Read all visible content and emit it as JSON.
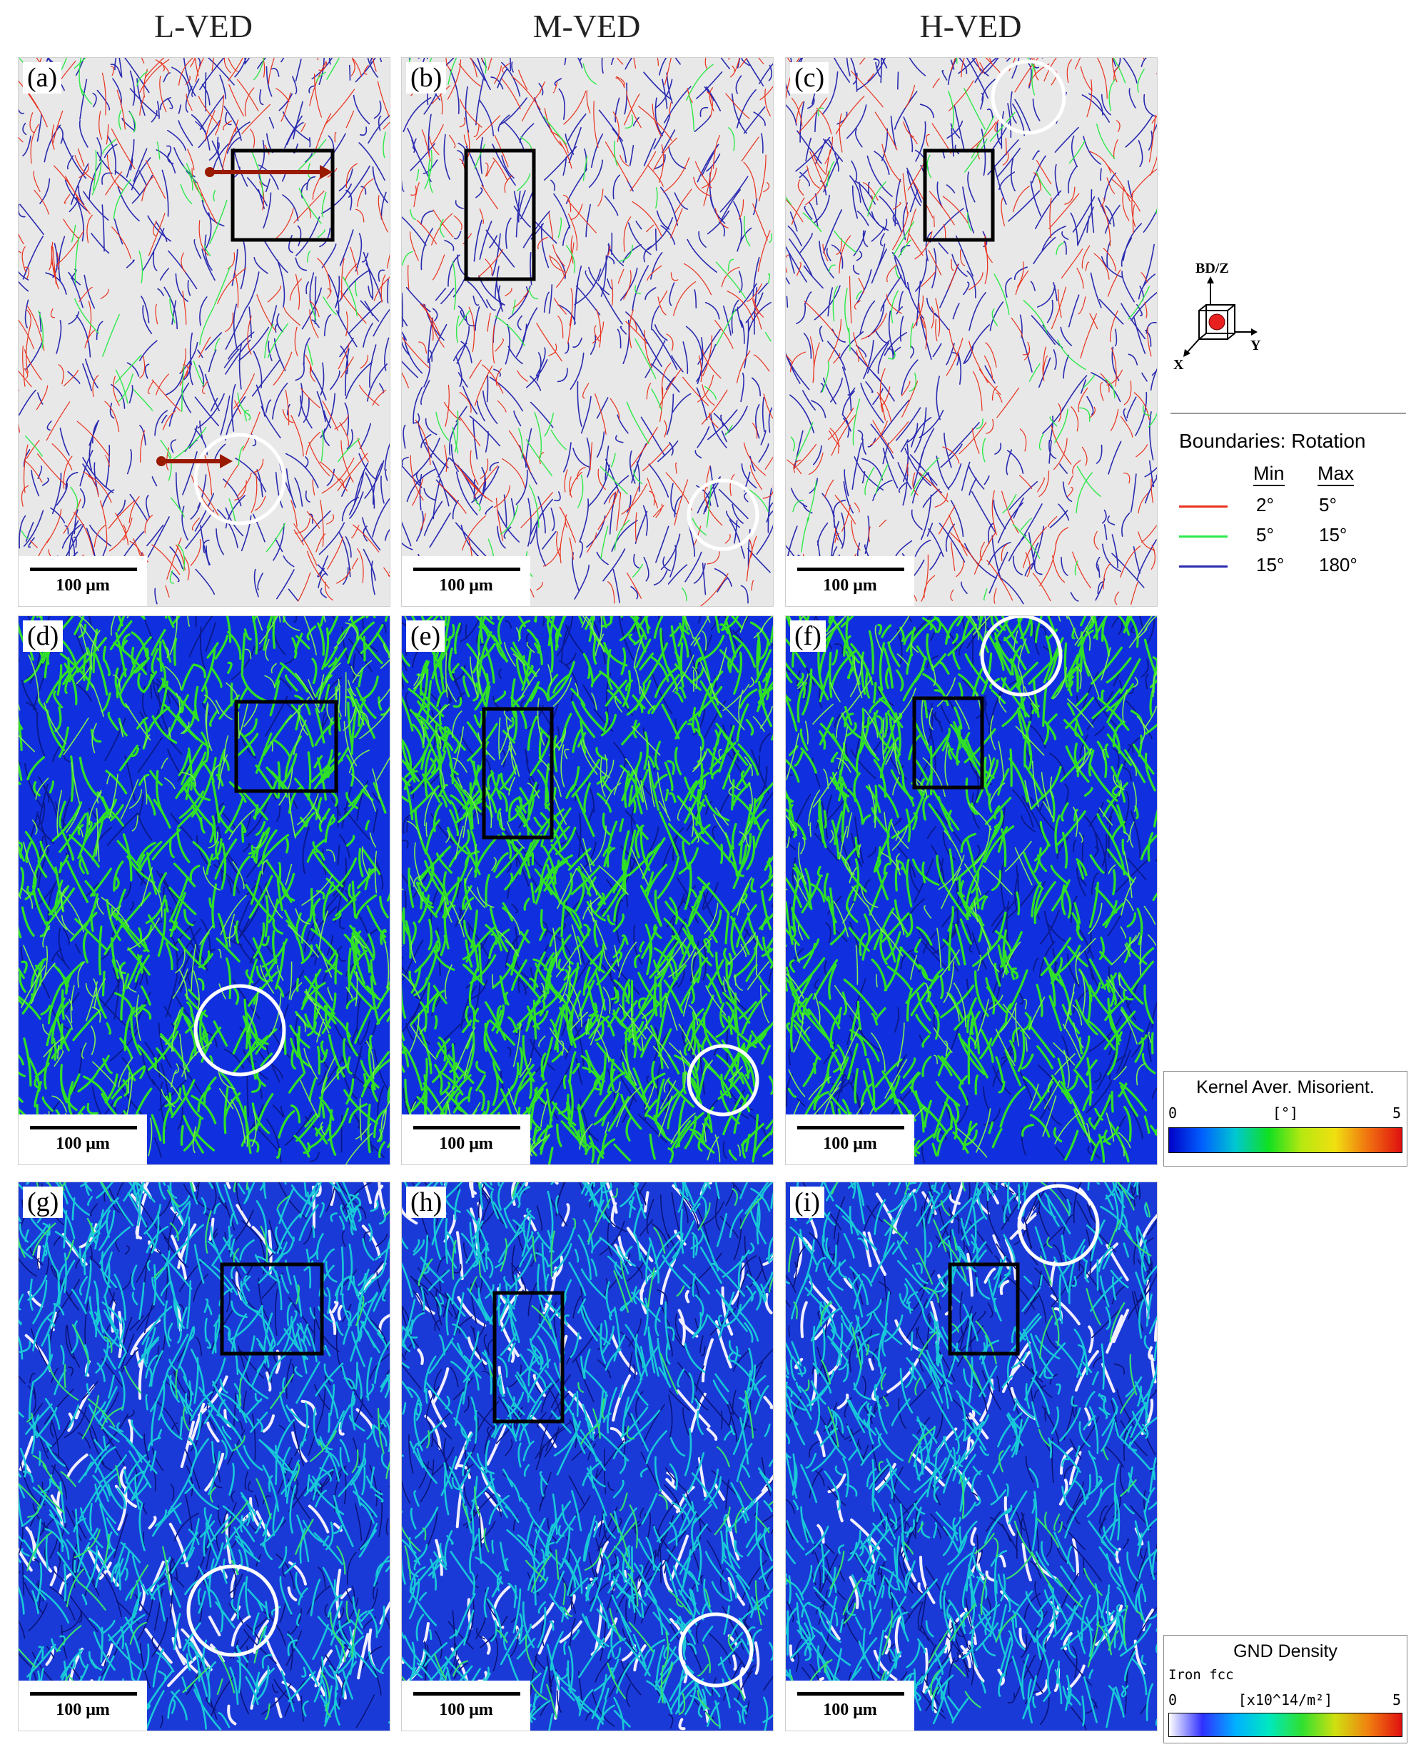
{
  "columns": [
    "L-VED",
    "M-VED",
    "H-VED"
  ],
  "panels": [
    {
      "label": "(a)",
      "type": "boundary",
      "scale_text": "100 μm"
    },
    {
      "label": "(b)",
      "type": "boundary",
      "scale_text": "100 μm"
    },
    {
      "label": "(c)",
      "type": "boundary",
      "scale_text": "100 μm"
    },
    {
      "label": "(d)",
      "type": "kam",
      "scale_text": "100 μm"
    },
    {
      "label": "(e)",
      "type": "kam",
      "scale_text": "100 μm"
    },
    {
      "label": "(f)",
      "type": "kam",
      "scale_text": "100 μm"
    },
    {
      "label": "(g)",
      "type": "gnd",
      "scale_text": "100 μm"
    },
    {
      "label": "(h)",
      "type": "gnd",
      "scale_text": "100 μm"
    },
    {
      "label": "(i)",
      "type": "gnd",
      "scale_text": "100 μm"
    }
  ],
  "axes_icon": {
    "z": "BD/Z",
    "y": "Y",
    "x": "X"
  },
  "boundary_legend": {
    "title": "Boundaries: Rotation",
    "min_header": "Min",
    "max_header": "Max",
    "rows": [
      {
        "color": "#e8321e",
        "min": "2°",
        "max": "5°"
      },
      {
        "color": "#2ee84a",
        "min": "5°",
        "max": "15°"
      },
      {
        "color": "#2a2ab0",
        "min": "15°",
        "max": "180°"
      }
    ]
  },
  "kam_legend": {
    "title": "Kernel Aver. Misorient.",
    "min": "0",
    "unit": "[°]",
    "max": "5"
  },
  "gnd_legend": {
    "title": "GND Density",
    "phase": "Iron fcc",
    "min": "0",
    "unit": "[x10^14/m²]",
    "max": "5"
  },
  "colors": {
    "kam_bg": "#1030e0",
    "kam_hi": "#30e028",
    "gnd_bg": "#1a3ad8",
    "gnd_hi": "#19c8d8",
    "boundary_bg": "#e8e8e8"
  }
}
